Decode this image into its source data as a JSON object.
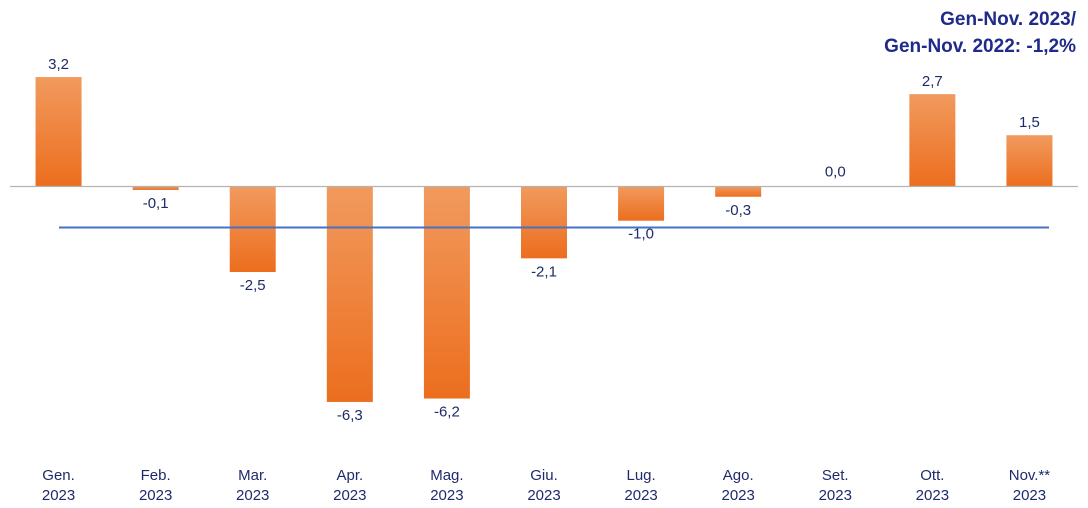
{
  "chart_data": {
    "type": "bar",
    "title": "",
    "annotation": [
      "Gen-Nov. 2023/",
      "Gen-Nov. 2022: -1,2%"
    ],
    "categories": [
      [
        "Gen.",
        "2023"
      ],
      [
        "Feb.",
        "2023"
      ],
      [
        "Mar.",
        "2023"
      ],
      [
        "Apr.",
        "2023"
      ],
      [
        "Mag.",
        "2023"
      ],
      [
        "Giu.",
        "2023"
      ],
      [
        "Lug.",
        "2023"
      ],
      [
        "Ago.",
        "2023"
      ],
      [
        "Set.",
        "2023"
      ],
      [
        "Ott.",
        "2023"
      ],
      [
        "Nov.**",
        "2023"
      ]
    ],
    "values": [
      3.2,
      -0.1,
      -2.5,
      -6.3,
      -6.2,
      -2.1,
      -1.0,
      -0.3,
      0.0,
      2.7,
      1.5
    ],
    "value_labels": [
      "3,2",
      "-0,1",
      "-2,5",
      "-6,3",
      "-6,2",
      "-2,1",
      "-1,0",
      "-0,3",
      "0,0",
      "2,7",
      "1,5"
    ],
    "reference_line": -1.2,
    "ylim": [
      -8.0,
      5.4
    ],
    "xlabel": "",
    "ylabel": "",
    "grid": false,
    "legend": "none",
    "colors": {
      "bar_top": "#f19a5e",
      "bar_bottom": "#ec6e1e",
      "reference_line": "#4472c4",
      "zero_line": "#b3b3b3",
      "text": "#1f2a6a",
      "annotation": "#1f2a8a"
    }
  }
}
